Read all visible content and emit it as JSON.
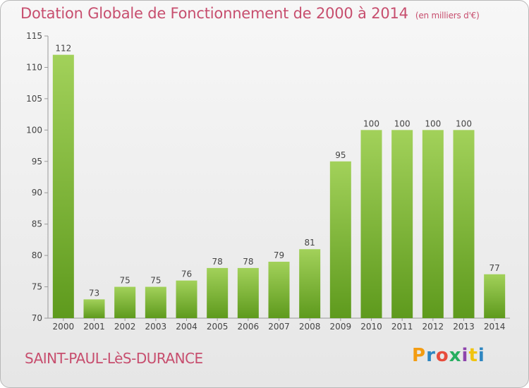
{
  "header": {
    "title": "Dotation Globale de Fonctionnement de 2000 à 2014",
    "unit": "(en milliers d'€)"
  },
  "footer": {
    "commune": "SAINT-PAUL-LèS-DURANCE",
    "logo_text": "Proxiti",
    "logo_colors": [
      "#f39c12",
      "#2e86c1",
      "#e74c3c",
      "#27ae60",
      "#8e44ad",
      "#f1c40f",
      "#2e86c1"
    ]
  },
  "colors": {
    "bar_top": "#a2d15a",
    "bar_bottom": "#5e9a1d",
    "axis_text": "#444444",
    "grid": "#dddddd"
  },
  "chart_data": {
    "type": "bar",
    "title": "Dotation Globale de Fonctionnement de 2000 à 2014",
    "subtitle": "(en milliers d'€)",
    "categories": [
      "2000",
      "2001",
      "2002",
      "2003",
      "2004",
      "2005",
      "2006",
      "2007",
      "2008",
      "2009",
      "2010",
      "2011",
      "2012",
      "2013",
      "2014"
    ],
    "values": [
      112,
      73,
      75,
      75,
      76,
      78,
      78,
      79,
      81,
      95,
      100,
      100,
      100,
      100,
      77
    ],
    "ylim": [
      70,
      115
    ],
    "yticks": [
      70,
      75,
      80,
      85,
      90,
      95,
      100,
      105,
      110,
      115
    ],
    "grid": false,
    "data_labels": true
  }
}
